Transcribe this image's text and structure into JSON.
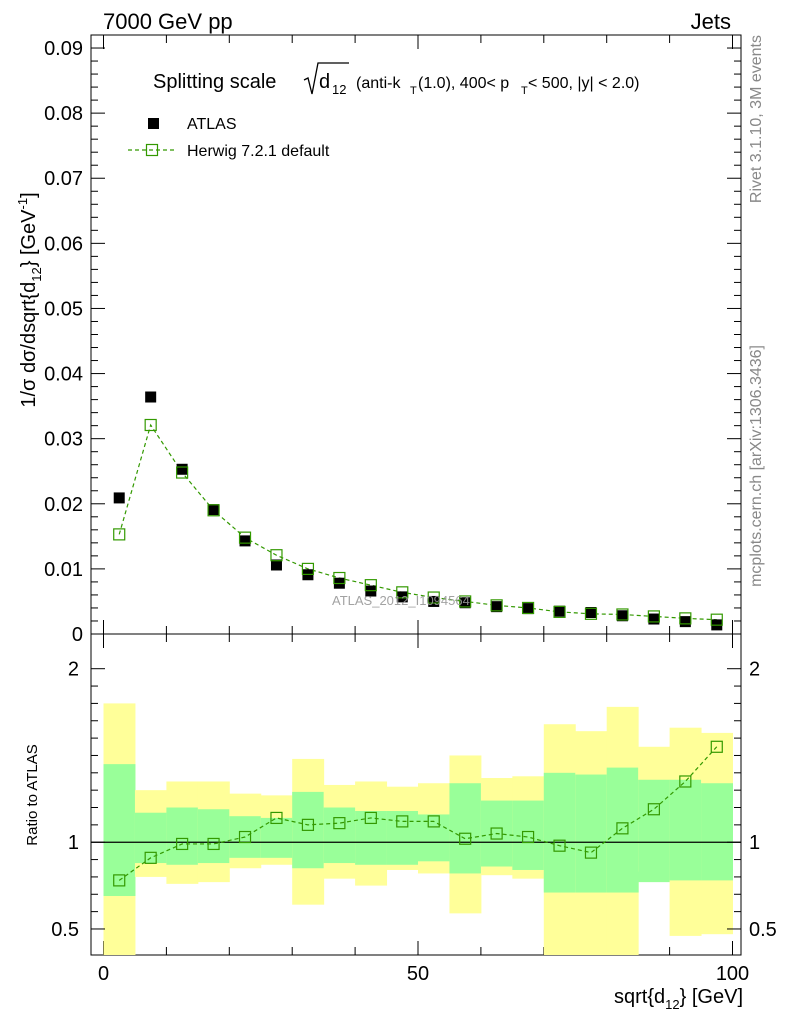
{
  "header": {
    "left": "7000 GeV pp",
    "right": "Jets"
  },
  "side_labels": {
    "rivet": "Rivet 3.1.10,  3M events",
    "mcplots": "mcplots.cern.ch [arXiv:1306.3436]"
  },
  "title": {
    "prefix": "Splitting scale",
    "rest": "(anti-k",
    "rest2": "(1.0), 400< p",
    "rest3": " < 500, |y| < 2.0)",
    "sub_d": "d",
    "sub_12": "12",
    "sub_T": "T"
  },
  "watermark": "ATLAS_2012_I1094564",
  "colors": {
    "data": "#000000",
    "mc": "#339900",
    "band_inner": "#99ff99",
    "band_outer": "#ffff99"
  },
  "chart_data": [
    {
      "type": "scatter",
      "panel": "main",
      "ylabel": "1/σ dσ/dsqrt{d",
      "ylabel_sub": "12",
      "ylabel_unit": "} [GeV",
      "ylabel_sup": "-1",
      "ylabel_end": "]",
      "xlim": [
        0,
        100
      ],
      "ylim": [
        0,
        0.092
      ],
      "yticks": [
        "0",
        "0.01",
        "0.02",
        "0.03",
        "0.04",
        "0.05",
        "0.06",
        "0.07",
        "0.08",
        "0.09"
      ],
      "x": [
        2.5,
        7.5,
        12.5,
        17.5,
        22.5,
        27.5,
        32.5,
        37.5,
        42.5,
        47.5,
        52.5,
        57.5,
        62.5,
        67.5,
        72.5,
        77.5,
        82.5,
        87.5,
        92.5,
        97.5
      ],
      "series": [
        {
          "name": "ATLAS",
          "values": [
            0.0209,
            0.0364,
            0.0253,
            0.0191,
            0.0143,
            0.0106,
            0.0091,
            0.0078,
            0.0066,
            0.0057,
            0.005,
            0.0048,
            0.0042,
            0.0039,
            0.0035,
            0.0033,
            0.0028,
            0.0023,
            0.0019,
            0.0014
          ]
        },
        {
          "name": "Herwig 7.2.1 default",
          "values": [
            0.0153,
            0.0321,
            0.0248,
            0.019,
            0.0148,
            0.0121,
            0.01,
            0.0086,
            0.0075,
            0.0064,
            0.0056,
            0.005,
            0.0044,
            0.004,
            0.0034,
            0.0031,
            0.003,
            0.0027,
            0.0024,
            0.0022
          ]
        }
      ]
    },
    {
      "type": "line",
      "panel": "ratio",
      "ylabel": "Ratio to ATLAS",
      "xlabel": "sqrt{d",
      "xlabel_sub": "12",
      "xlabel_end": "} [GeV]",
      "xlim": [
        0,
        100
      ],
      "ylim": [
        0.35,
        2.2
      ],
      "xticks": [
        "0",
        "50",
        "100"
      ],
      "yticks": [
        "0.5",
        "1",
        "2"
      ],
      "x": [
        2.5,
        7.5,
        12.5,
        17.5,
        22.5,
        27.5,
        32.5,
        37.5,
        42.5,
        47.5,
        52.5,
        57.5,
        62.5,
        67.5,
        72.5,
        77.5,
        82.5,
        87.5,
        92.5,
        97.5
      ],
      "series": [
        {
          "name": "Herwig 7.2.1 default",
          "values": [
            0.78,
            0.91,
            0.99,
            0.99,
            1.03,
            1.14,
            1.1,
            1.11,
            1.14,
            1.12,
            1.12,
            1.02,
            1.05,
            1.03,
            0.98,
            0.94,
            1.08,
            1.19,
            1.35,
            1.55
          ]
        }
      ],
      "band_inner": [
        [
          0.69,
          1.45
        ],
        [
          0.88,
          1.17
        ],
        [
          0.87,
          1.2
        ],
        [
          0.88,
          1.19
        ],
        [
          0.91,
          1.15
        ],
        [
          0.91,
          1.14
        ],
        [
          0.85,
          1.29
        ],
        [
          0.88,
          1.2
        ],
        [
          0.87,
          1.18
        ],
        [
          0.87,
          1.18
        ],
        [
          0.89,
          1.16
        ],
        [
          0.82,
          1.34
        ],
        [
          0.86,
          1.24
        ],
        [
          0.84,
          1.24
        ],
        [
          0.71,
          1.4
        ],
        [
          0.71,
          1.39
        ],
        [
          0.71,
          1.43
        ],
        [
          0.77,
          1.36
        ],
        [
          0.78,
          1.36
        ],
        [
          0.78,
          1.34
        ]
      ],
      "band_outer": [
        [
          0.35,
          1.8
        ],
        [
          0.8,
          1.3
        ],
        [
          0.76,
          1.35
        ],
        [
          0.77,
          1.35
        ],
        [
          0.85,
          1.28
        ],
        [
          0.87,
          1.27
        ],
        [
          0.64,
          1.48
        ],
        [
          0.79,
          1.33
        ],
        [
          0.75,
          1.35
        ],
        [
          0.84,
          1.32
        ],
        [
          0.82,
          1.34
        ],
        [
          0.59,
          1.5
        ],
        [
          0.81,
          1.37
        ],
        [
          0.79,
          1.38
        ],
        [
          0.35,
          1.68
        ],
        [
          0.35,
          1.64
        ],
        [
          0.35,
          1.78
        ],
        [
          0.83,
          1.55
        ],
        [
          0.46,
          1.66
        ],
        [
          0.47,
          1.63
        ]
      ]
    }
  ]
}
